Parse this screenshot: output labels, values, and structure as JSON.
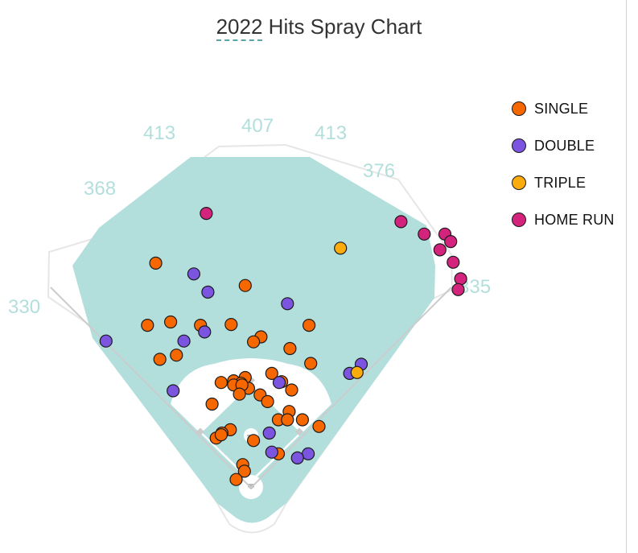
{
  "chart_data": {
    "type": "scatter",
    "title": "2022 Hits Spray Chart",
    "title_underlined_word": "2022",
    "field_distances": [
      {
        "label": "330",
        "side": "left-line"
      },
      {
        "label": "368",
        "side": "left-field"
      },
      {
        "label": "413",
        "side": "left-center"
      },
      {
        "label": "407",
        "side": "center"
      },
      {
        "label": "413",
        "side": "right-center"
      },
      {
        "label": "376",
        "side": "right-field"
      },
      {
        "label": "335",
        "side": "right-line"
      }
    ],
    "legend_position": "top-right",
    "series": [
      {
        "name": "SINGLE",
        "color": "#f76700",
        "points": [
          [
            -115,
            271
          ],
          [
            -7,
            244
          ],
          [
            -97,
            200
          ],
          [
            -61,
            196
          ],
          [
            -125,
            196
          ],
          [
            -24,
            197
          ],
          [
            12,
            182
          ],
          [
            70,
            196
          ],
          [
            3,
            176
          ],
          [
            -110,
            155
          ],
          [
            -90,
            160
          ],
          [
            72,
            150
          ],
          [
            47,
            168
          ],
          [
            25,
            138
          ],
          [
            -21,
            129
          ],
          [
            37,
            128
          ],
          [
            -7,
            133
          ],
          [
            -12,
            126
          ],
          [
            -3,
            120
          ],
          [
            49,
            118
          ],
          [
            -36,
            127
          ],
          [
            -21,
            124
          ],
          [
            -11,
            124
          ],
          [
            11,
            112
          ],
          [
            -14,
            113
          ],
          [
            20,
            104
          ],
          [
            -47,
            101
          ],
          [
            46,
            92
          ],
          [
            33,
            82
          ],
          [
            62,
            82
          ],
          [
            44,
            82
          ],
          [
            82,
            74
          ],
          [
            -25,
            70
          ],
          [
            -35,
            66
          ],
          [
            -42,
            60
          ],
          [
            -36,
            64
          ],
          [
            3,
            57
          ],
          [
            33,
            41
          ],
          [
            -10,
            28
          ],
          [
            -8,
            20
          ],
          [
            -18,
            10
          ]
        ]
      },
      {
        "name": "DOUBLE",
        "color": "#7b55e0",
        "points": [
          [
            -69,
            258
          ],
          [
            -52,
            236
          ],
          [
            44,
            222
          ],
          [
            -56,
            188
          ],
          [
            -81,
            177
          ],
          [
            -175,
            177
          ],
          [
            133,
            149
          ],
          [
            119,
            138
          ],
          [
            34,
            127
          ],
          [
            -94,
            117
          ],
          [
            22,
            66
          ],
          [
            25,
            43
          ],
          [
            69,
            41
          ],
          [
            56,
            36
          ]
        ]
      },
      {
        "name": "TRIPLE",
        "color": "#fbac0d",
        "points": [
          [
            108,
            289
          ],
          [
            128,
            139
          ]
        ]
      },
      {
        "name": "HOME RUN",
        "color": "#d4237d",
        "points": [
          [
            -54,
            331
          ],
          [
            181,
            321
          ],
          [
            209,
            306
          ],
          [
            228,
            287
          ],
          [
            234,
            306
          ],
          [
            241,
            297
          ],
          [
            244,
            272
          ],
          [
            253,
            252
          ],
          [
            250,
            239
          ]
        ]
      }
    ]
  },
  "legend": {
    "items": [
      {
        "label": "SINGLE",
        "color": "#f76700"
      },
      {
        "label": "DOUBLE",
        "color": "#7b55e0"
      },
      {
        "label": "TRIPLE",
        "color": "#fbac0d"
      },
      {
        "label": "HOME RUN",
        "color": "#d4237d"
      }
    ]
  }
}
